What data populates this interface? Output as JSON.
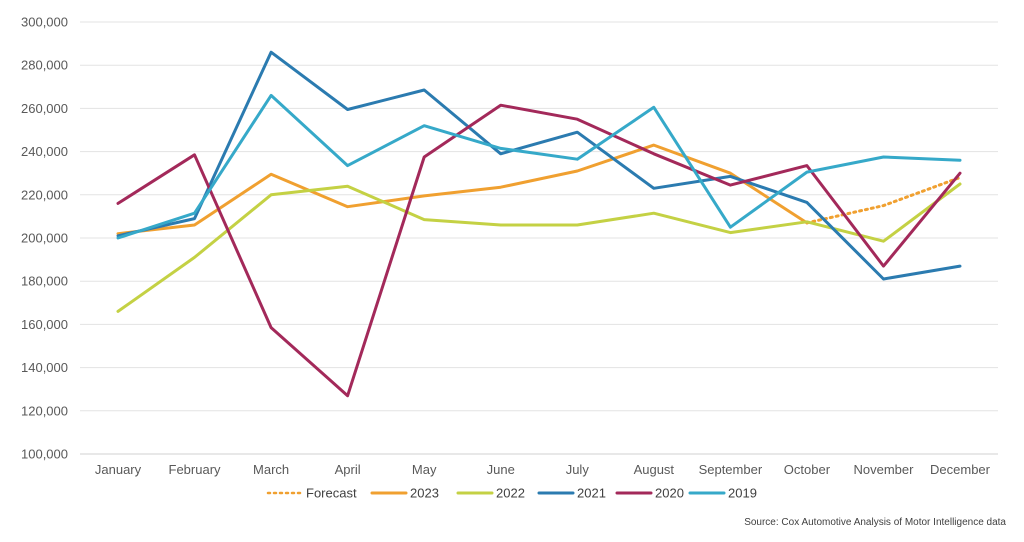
{
  "chart_data": {
    "type": "line",
    "title": "",
    "xlabel": "",
    "ylabel": "",
    "categories": [
      "January",
      "February",
      "March",
      "April",
      "May",
      "June",
      "July",
      "August",
      "September",
      "October",
      "November",
      "December"
    ],
    "y_ticks": [
      "100,000",
      "120,000",
      "140,000",
      "160,000",
      "180,000",
      "200,000",
      "220,000",
      "240,000",
      "260,000",
      "280,000",
      "300,000"
    ],
    "ylim": [
      100000,
      300000
    ],
    "grid": true,
    "legend_position": "bottom",
    "series": [
      {
        "name": "Forecast",
        "color": "#F0A030",
        "dashed": true,
        "values": [
          null,
          null,
          null,
          null,
          null,
          null,
          null,
          null,
          null,
          207000,
          215000,
          228000
        ]
      },
      {
        "name": "2023",
        "color": "#F0A030",
        "dashed": false,
        "values": [
          202000,
          206000,
          229500,
          214500,
          219500,
          223500,
          231000,
          243000,
          230000,
          207000,
          null,
          null
        ]
      },
      {
        "name": "2022",
        "color": "#C4D144",
        "dashed": false,
        "values": [
          166000,
          191000,
          220000,
          224000,
          208500,
          206000,
          206000,
          211500,
          202500,
          207500,
          198500,
          225000
        ]
      },
      {
        "name": "2021",
        "color": "#2B7BB0",
        "dashed": false,
        "values": [
          201000,
          209000,
          286000,
          259500,
          268500,
          239000,
          249000,
          223000,
          228500,
          216500,
          181000,
          187000
        ]
      },
      {
        "name": "2020",
        "color": "#A3295A",
        "dashed": false,
        "values": [
          216000,
          238500,
          158500,
          127000,
          237500,
          261500,
          255000,
          239000,
          224500,
          233500,
          187000,
          230000
        ]
      },
      {
        "name": "2019",
        "color": "#36A9C9",
        "dashed": false,
        "values": [
          200000,
          211500,
          266000,
          233500,
          252000,
          241500,
          236500,
          260500,
          205000,
          230500,
          237500,
          236000
        ]
      }
    ]
  },
  "source": "Source: Cox Automotive Analysis of Motor Intelligence data"
}
